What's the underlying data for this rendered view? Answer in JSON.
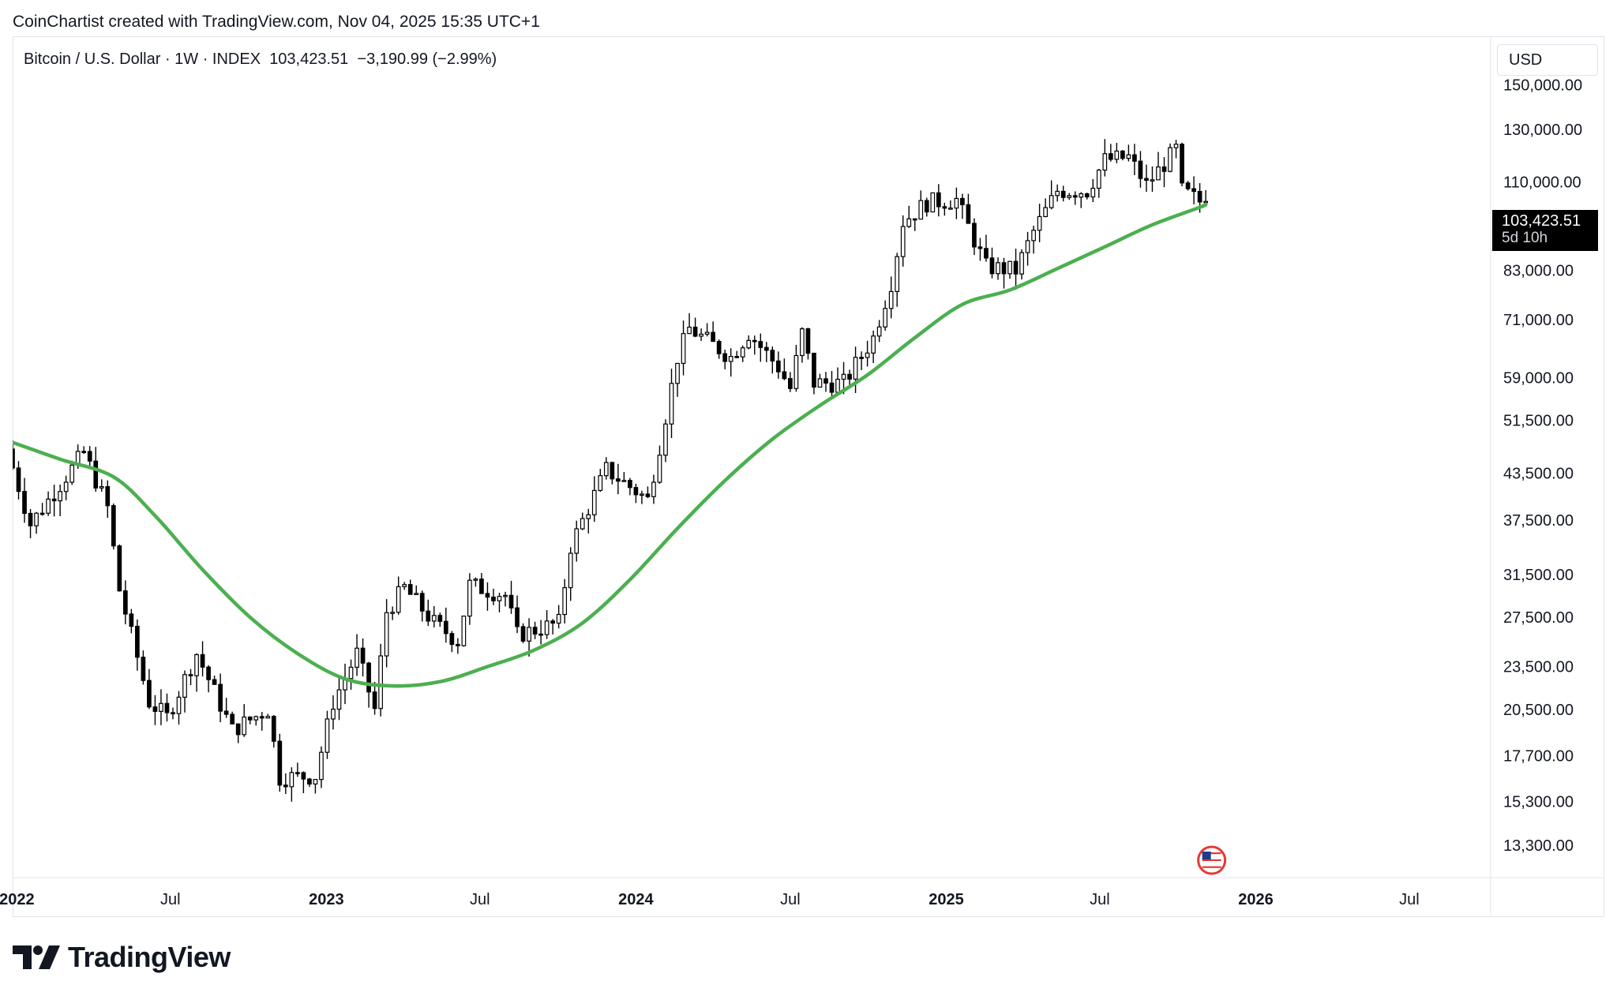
{
  "header": {
    "credit": "CoinChartist created with TradingView.com, Nov 04, 2025 15:35 UTC+1",
    "symbol": "Bitcoin / U.S. Dollar · 1W · INDEX",
    "last_price": "103,423.51",
    "change": "−3,190.99 (−2.99%)",
    "currency_button": "USD"
  },
  "price_tag": {
    "price": "103,423.51",
    "countdown": "5d 10h"
  },
  "brand": {
    "name": "TradingView"
  },
  "colors": {
    "ma_line": "#4caf50",
    "candle_up_fill": "#ffffff",
    "candle_down_fill": "#000000",
    "candle_stroke": "#000000",
    "grid_border": "#e0e3eb"
  },
  "chart_data": {
    "type": "candlestick",
    "scale": "log",
    "y_ticks": [
      150000,
      130000,
      110000,
      83000,
      71000,
      59000,
      51500,
      43500,
      37500,
      31500,
      27500,
      23500,
      20500,
      17700,
      15300,
      13300
    ],
    "y_tick_labels": [
      "150,000.00",
      "130,000.00",
      "110,000.00",
      "83,000.00",
      "71,000.00",
      "59,000.00",
      "51,500.00",
      "43,500.00",
      "37,500.00",
      "31,500.00",
      "27,500.00",
      "23,500.00",
      "20,500.00",
      "17,700.00",
      "15,300.00",
      "13,300.00"
    ],
    "x_ticks": [
      {
        "label": "2022",
        "date": "2022-01-01",
        "bold": true
      },
      {
        "label": "Jul",
        "date": "2022-07-01",
        "bold": false
      },
      {
        "label": "2023",
        "date": "2023-01-01",
        "bold": true
      },
      {
        "label": "Jul",
        "date": "2023-07-01",
        "bold": false
      },
      {
        "label": "2024",
        "date": "2024-01-01",
        "bold": true
      },
      {
        "label": "Jul",
        "date": "2024-07-01",
        "bold": false
      },
      {
        "label": "2025",
        "date": "2025-01-01",
        "bold": true
      },
      {
        "label": "Jul",
        "date": "2025-07-01",
        "bold": false
      },
      {
        "label": "2026",
        "date": "2026-01-01",
        "bold": true
      },
      {
        "label": "Jul",
        "date": "2026-07-01",
        "bold": false
      }
    ],
    "x_range": [
      "2021-12-27",
      "2026-10-05"
    ],
    "y_range": [
      12000,
      175000
    ],
    "price_anchors": [
      [
        "2021-12-27",
        47000
      ],
      [
        "2022-01-24",
        37000
      ],
      [
        "2022-03-28",
        46500
      ],
      [
        "2022-04-25",
        39000
      ],
      [
        "2022-05-09",
        30000
      ],
      [
        "2022-06-13",
        21000
      ],
      [
        "2022-07-04",
        20000
      ],
      [
        "2022-08-08",
        24500
      ],
      [
        "2022-09-19",
        19200
      ],
      [
        "2022-10-31",
        20500
      ],
      [
        "2022-11-14",
        16500
      ],
      [
        "2022-12-26",
        16600
      ],
      [
        "2023-01-16",
        21000
      ],
      [
        "2023-02-13",
        24500
      ],
      [
        "2023-03-06",
        20500
      ],
      [
        "2023-03-20",
        28000
      ],
      [
        "2023-04-10",
        30200
      ],
      [
        "2023-05-15",
        27000
      ],
      [
        "2023-06-12",
        25500
      ],
      [
        "2023-06-26",
        30500
      ],
      [
        "2023-08-07",
        29500
      ],
      [
        "2023-08-21",
        26000
      ],
      [
        "2023-10-09",
        27000
      ],
      [
        "2023-10-23",
        34500
      ],
      [
        "2023-12-04",
        44000
      ],
      [
        "2024-01-22",
        40000
      ],
      [
        "2024-02-05",
        47500
      ],
      [
        "2024-02-26",
        63000
      ],
      [
        "2024-03-11",
        69000
      ],
      [
        "2024-04-29",
        63000
      ],
      [
        "2024-05-20",
        68000
      ],
      [
        "2024-06-24",
        61000
      ],
      [
        "2024-07-08",
        57000
      ],
      [
        "2024-07-22",
        68000
      ],
      [
        "2024-08-05",
        58000
      ],
      [
        "2024-09-09",
        58000
      ],
      [
        "2024-10-14",
        67000
      ],
      [
        "2024-11-04",
        80000
      ],
      [
        "2024-11-18",
        97000
      ],
      [
        "2024-12-16",
        103000
      ],
      [
        "2025-01-20",
        104000
      ],
      [
        "2025-02-24",
        84000
      ],
      [
        "2025-03-31",
        83000
      ],
      [
        "2025-04-21",
        94000
      ],
      [
        "2025-05-19",
        107000
      ],
      [
        "2025-06-23",
        107000
      ],
      [
        "2025-07-14",
        118000
      ],
      [
        "2025-08-11",
        119000
      ],
      [
        "2025-09-01",
        109000
      ],
      [
        "2025-10-06",
        122000
      ],
      [
        "2025-10-13",
        107000
      ],
      [
        "2025-11-03",
        103423
      ]
    ],
    "ma_series": {
      "name": "",
      "points": [
        [
          "2021-12-27",
          48000
        ],
        [
          "2022-02-21",
          45500
        ],
        [
          "2022-04-25",
          43000
        ],
        [
          "2022-06-13",
          38000
        ],
        [
          "2022-08-08",
          32000
        ],
        [
          "2022-10-03",
          27500
        ],
        [
          "2022-11-28",
          24500
        ],
        [
          "2023-01-23",
          22600
        ],
        [
          "2023-03-20",
          22100
        ],
        [
          "2023-05-15",
          22400
        ],
        [
          "2023-07-10",
          23500
        ],
        [
          "2023-09-04",
          24800
        ],
        [
          "2023-10-30",
          27000
        ],
        [
          "2023-12-25",
          31000
        ],
        [
          "2024-02-19",
          36500
        ],
        [
          "2024-04-15",
          42500
        ],
        [
          "2024-06-10",
          48500
        ],
        [
          "2024-08-05",
          54000
        ],
        [
          "2024-09-30",
          59500
        ],
        [
          "2024-11-25",
          67000
        ],
        [
          "2025-01-20",
          74500
        ],
        [
          "2025-03-17",
          78000
        ],
        [
          "2025-05-12",
          83500
        ],
        [
          "2025-07-07",
          89500
        ],
        [
          "2025-09-01",
          96000
        ],
        [
          "2025-10-27",
          101500
        ],
        [
          "2025-11-03",
          102500
        ]
      ]
    }
  }
}
